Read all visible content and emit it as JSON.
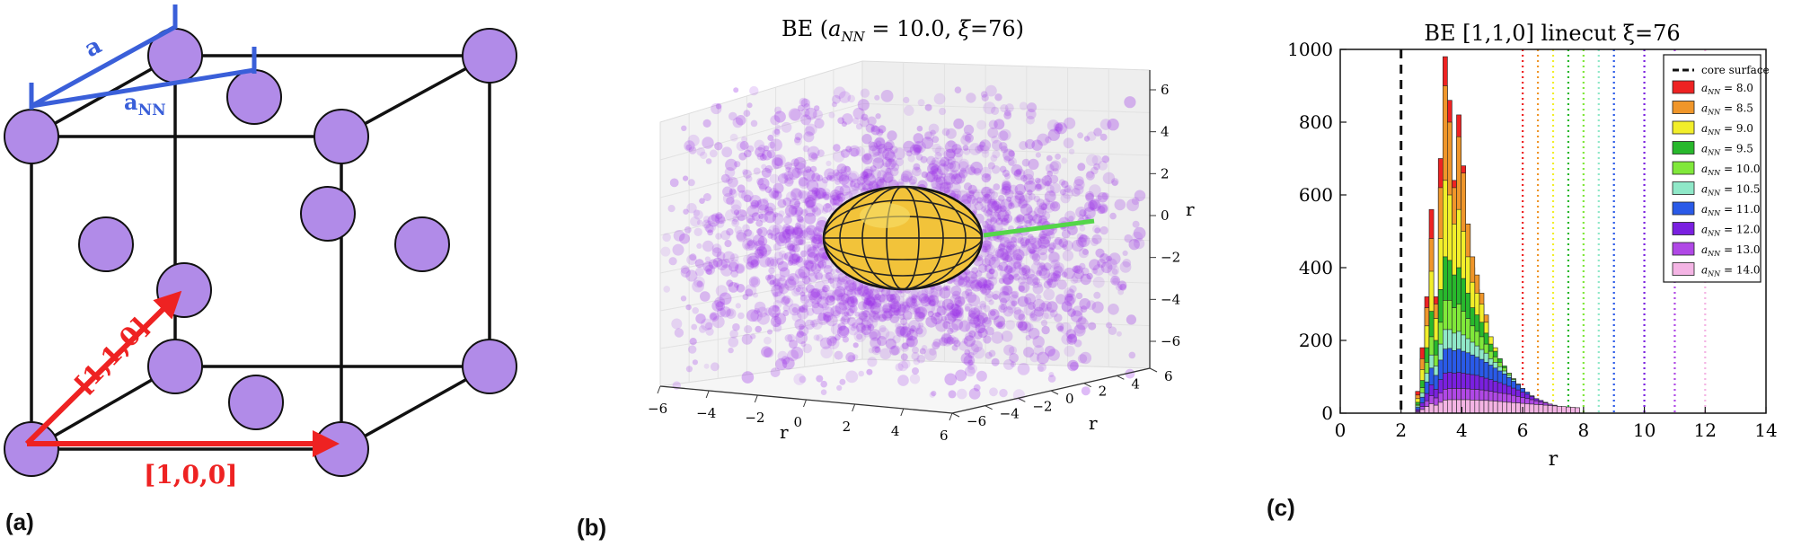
{
  "panel_a": {
    "label": "(a)",
    "lattice_label": "a",
    "nn_label_main": "a",
    "nn_label_sub": "NN",
    "vector_110": "[1,1,0]",
    "vector_100": "[1,0,0]",
    "colors": {
      "atom": "#b18be8",
      "edge": "#111111",
      "lattice_blue": "#3a5fd9",
      "vector_red": "#ee2222"
    }
  },
  "panel_b": {
    "label": "(b)",
    "title": "BE (a_NN = 10.0, ξ=76)",
    "axis_label": "r",
    "x_ticks": [
      "−6",
      "−4",
      "−2",
      "0",
      "2",
      "4",
      "6"
    ],
    "y_ticks": [
      "−6",
      "−4",
      "−2",
      "0",
      "2",
      "4",
      "6"
    ],
    "z_ticks": [
      "6",
      "4",
      "2",
      "0",
      "−2",
      "−4",
      "−6"
    ],
    "colors": {
      "points": "#9b30e8",
      "core": "#f2c33a",
      "linecut": "#55d64a"
    }
  },
  "panel_c": {
    "label": "(c)",
    "chart_data": {
      "type": "bar",
      "title": "BE [1,1,0] linecut ξ=76",
      "xlabel": "r",
      "ylabel": "",
      "xlim": [
        0,
        14
      ],
      "ylim": [
        0,
        1000
      ],
      "x_ticks": [
        "0",
        "2",
        "4",
        "6",
        "8",
        "10",
        "12",
        "14"
      ],
      "y_ticks": [
        "0",
        "200",
        "400",
        "600",
        "800",
        "1000"
      ],
      "core_surface_r": 2.0,
      "core_surface_label": "core surface",
      "bin_centers": [
        2.55,
        2.7,
        2.85,
        3.0,
        3.15,
        3.3,
        3.45,
        3.6,
        3.75,
        3.9,
        4.05,
        4.2,
        4.35,
        4.5,
        4.65,
        4.8,
        4.95,
        5.1,
        5.25,
        5.4,
        5.55,
        5.7,
        5.85,
        6.0,
        6.15,
        6.3,
        6.45,
        6.6,
        6.75,
        6.9,
        7.05,
        7.2,
        7.35,
        7.5,
        7.65,
        7.8
      ],
      "series": [
        {
          "name": "a_NN = 8.0",
          "sub": "NN",
          "value": "= 8.0",
          "color": "#ee2222",
          "cutoff_r": 6.0,
          "values": [
            60,
            180,
            320,
            560,
            320,
            700,
            980,
            860,
            640,
            820,
            680,
            520,
            400,
            340,
            260,
            180,
            120,
            80,
            60,
            40,
            30,
            22,
            16,
            10,
            6,
            4,
            2,
            1,
            0,
            0,
            0,
            0,
            0,
            0,
            0,
            0
          ]
        },
        {
          "name": "a_NN = 8.5",
          "sub": "NN",
          "value": "= 8.5",
          "color": "#f0962a",
          "cutoff_r": 6.5,
          "values": [
            50,
            150,
            290,
            480,
            300,
            620,
            900,
            800,
            620,
            760,
            660,
            520,
            430,
            380,
            330,
            270,
            200,
            160,
            120,
            90,
            60,
            40,
            30,
            20,
            12,
            8,
            4,
            2,
            1,
            0,
            0,
            0,
            0,
            0,
            0,
            0
          ]
        },
        {
          "name": "a_NN = 9.0",
          "sub": "NN",
          "value": "= 9.0",
          "color": "#f2ee2a",
          "cutoff_r": 7.0,
          "values": [
            40,
            120,
            240,
            390,
            260,
            480,
            640,
            600,
            520,
            560,
            500,
            430,
            360,
            330,
            300,
            250,
            210,
            180,
            150,
            120,
            90,
            70,
            50,
            36,
            24,
            14,
            8,
            4,
            2,
            1,
            0,
            0,
            0,
            0,
            0,
            0
          ]
        },
        {
          "name": "a_NN = 9.5",
          "sub": "NN",
          "value": "= 9.5",
          "color": "#28b82c",
          "cutoff_r": 7.5,
          "values": [
            30,
            90,
            180,
            280,
            200,
            340,
            430,
            420,
            380,
            400,
            370,
            330,
            290,
            270,
            250,
            220,
            190,
            170,
            150,
            130,
            110,
            90,
            72,
            56,
            42,
            30,
            20,
            12,
            7,
            4,
            2,
            1,
            0,
            0,
            0,
            0
          ]
        },
        {
          "name": "a_NN = 10.0",
          "sub": "NN",
          "value": "= 10.0",
          "color": "#80e83a",
          "cutoff_r": 8.0,
          "values": [
            24,
            70,
            140,
            210,
            160,
            250,
            310,
            310,
            290,
            300,
            280,
            260,
            240,
            225,
            210,
            190,
            170,
            155,
            140,
            125,
            110,
            95,
            80,
            66,
            52,
            40,
            30,
            21,
            14,
            9,
            5,
            3,
            1,
            0,
            0,
            0
          ]
        },
        {
          "name": "a_NN = 10.5",
          "sub": "NN",
          "value": "= 10.5",
          "color": "#8fe8c8",
          "cutoff_r": 8.5,
          "values": [
            20,
            56,
            110,
            160,
            130,
            190,
            230,
            230,
            220,
            225,
            215,
            205,
            195,
            185,
            175,
            165,
            150,
            140,
            128,
            116,
            104,
            92,
            80,
            68,
            56,
            46,
            36,
            27,
            20,
            14,
            9,
            6,
            3,
            2,
            1,
            0
          ]
        },
        {
          "name": "a_NN = 11.0",
          "sub": "NN",
          "value": "= 11.0",
          "color": "#2a5ae8",
          "cutoff_r": 9.0,
          "values": [
            16,
            44,
            86,
            124,
            104,
            146,
            176,
            178,
            172,
            176,
            170,
            166,
            160,
            154,
            148,
            140,
            132,
            124,
            116,
            108,
            98,
            88,
            78,
            68,
            58,
            48,
            40,
            32,
            25,
            19,
            14,
            10,
            6,
            4,
            2,
            1
          ]
        },
        {
          "name": "a_NN = 12.0",
          "sub": "NN",
          "value": "= 12.0",
          "color": "#7a20e0",
          "cutoff_r": 10.0,
          "values": [
            10,
            28,
            54,
            78,
            66,
            92,
            110,
            112,
            110,
            112,
            110,
            108,
            106,
            104,
            100,
            96,
            92,
            88,
            84,
            79,
            74,
            69,
            64,
            58,
            52,
            46,
            40,
            35,
            30,
            25,
            21,
            17,
            13,
            10,
            7,
            5
          ]
        },
        {
          "name": "a_NN = 13.0",
          "sub": "NN",
          "value": "= 13.0",
          "color": "#b048e6",
          "cutoff_r": 11.0,
          "values": [
            6,
            18,
            34,
            48,
            42,
            56,
            66,
            68,
            68,
            68,
            68,
            67,
            66,
            65,
            64,
            62,
            60,
            58,
            56,
            54,
            52,
            49,
            46,
            43,
            40,
            37,
            34,
            31,
            28,
            25,
            22,
            19,
            16,
            14,
            12,
            10
          ]
        },
        {
          "name": "a_NN = 14.0",
          "sub": "NN",
          "value": "= 14.0",
          "color": "#f4b4e4",
          "cutoff_r": 12.0,
          "values": [
            3,
            10,
            18,
            26,
            22,
            30,
            36,
            37,
            37,
            37,
            37,
            37,
            36,
            36,
            35,
            35,
            34,
            33,
            32,
            31,
            30,
            29,
            28,
            27,
            26,
            25,
            24,
            23,
            22,
            21,
            20,
            19,
            18,
            17,
            16,
            15
          ]
        }
      ]
    }
  }
}
